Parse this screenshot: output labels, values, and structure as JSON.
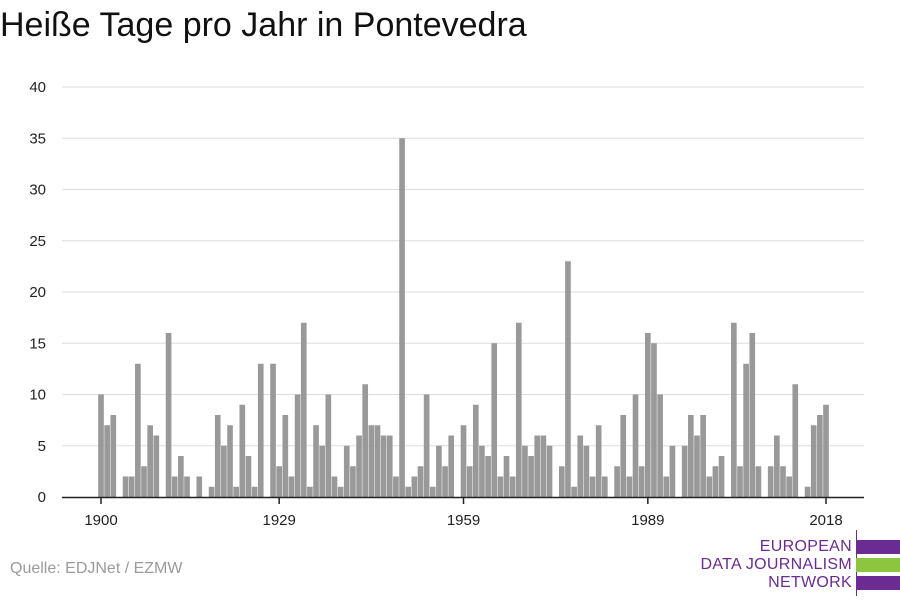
{
  "title": "Heiße Tage pro Jahr in Pontevedra",
  "source": "Quelle: EDJNet / EZMW",
  "logo": {
    "lines": [
      "EUROPEAN",
      "DATA JOURNALISM",
      "NETWORK"
    ],
    "bar_colors": [
      "#6a2c91",
      "#8cc63f",
      "#6a2c91"
    ]
  },
  "colors": {
    "bar": "#999999",
    "grid": "#dddddd",
    "axis": "#222222"
  },
  "chart_data": {
    "type": "bar",
    "title": "Heiße Tage pro Jahr in Pontevedra",
    "xlabel": "",
    "ylabel": "",
    "x_start": 1900,
    "x_end": 2018,
    "x_ticks": [
      1900,
      1929,
      1959,
      1989,
      2018
    ],
    "ylim": [
      0,
      40
    ],
    "y_ticks": [
      0,
      5,
      10,
      15,
      20,
      25,
      30,
      35,
      40
    ],
    "grid": true,
    "values": [
      10,
      7,
      8,
      0,
      2,
      2,
      13,
      3,
      7,
      6,
      0,
      16,
      2,
      4,
      2,
      0,
      2,
      0,
      1,
      8,
      5,
      7,
      1,
      9,
      4,
      1,
      13,
      0,
      13,
      3,
      8,
      2,
      10,
      17,
      1,
      7,
      5,
      10,
      2,
      1,
      5,
      3,
      6,
      11,
      7,
      7,
      6,
      6,
      2,
      35,
      1,
      2,
      3,
      10,
      1,
      5,
      3,
      6,
      0,
      7,
      3,
      9,
      5,
      4,
      15,
      2,
      4,
      2,
      17,
      5,
      4,
      6,
      6,
      5,
      0,
      3,
      23,
      1,
      6,
      5,
      2,
      7,
      2,
      0,
      3,
      8,
      2,
      10,
      3,
      16,
      15,
      10,
      2,
      5,
      0,
      5,
      8,
      6,
      8,
      2,
      3,
      4,
      0,
      17,
      3,
      13,
      16,
      3,
      0,
      3,
      6,
      3,
      2,
      11,
      0,
      1,
      7,
      8,
      9
    ]
  }
}
